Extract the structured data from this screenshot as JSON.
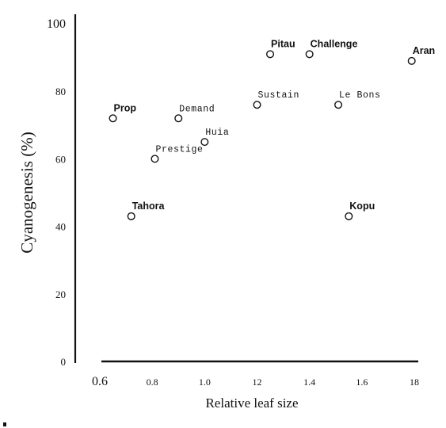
{
  "chart_data": {
    "type": "scatter",
    "xlabel": "Relative leaf size",
    "ylabel": "Cyanogenesis (%)",
    "xlim": [
      0.6,
      1.8
    ],
    "ylim": [
      0,
      100
    ],
    "x_ticks": [
      "0.6",
      "0.8",
      "1.0",
      "12",
      "1.4",
      "1.6",
      "18"
    ],
    "y_ticks": [
      "0",
      "20",
      "40",
      "60",
      "80",
      "100"
    ],
    "grid": false,
    "points": [
      {
        "label": "Prop",
        "x": 0.65,
        "y": 72,
        "style": "bold"
      },
      {
        "label": "Tahora",
        "x": 0.72,
        "y": 43,
        "style": "bold"
      },
      {
        "label": "Prestige",
        "x": 0.81,
        "y": 60,
        "style": "mono"
      },
      {
        "label": "Demand",
        "x": 0.9,
        "y": 72,
        "style": "mono"
      },
      {
        "label": "Huia",
        "x": 1.0,
        "y": 65,
        "style": "mono"
      },
      {
        "label": "Sustain",
        "x": 1.2,
        "y": 76,
        "style": "mono"
      },
      {
        "label": "Pitau",
        "x": 1.25,
        "y": 91,
        "style": "bold"
      },
      {
        "label": "Challenge",
        "x": 1.4,
        "y": 91,
        "style": "bold"
      },
      {
        "label": "Le Bons",
        "x": 1.51,
        "y": 76,
        "style": "mono"
      },
      {
        "label": "Kopu",
        "x": 1.55,
        "y": 43,
        "style": "bold"
      },
      {
        "label": "Aran",
        "x": 1.79,
        "y": 89,
        "style": "bold"
      }
    ]
  }
}
